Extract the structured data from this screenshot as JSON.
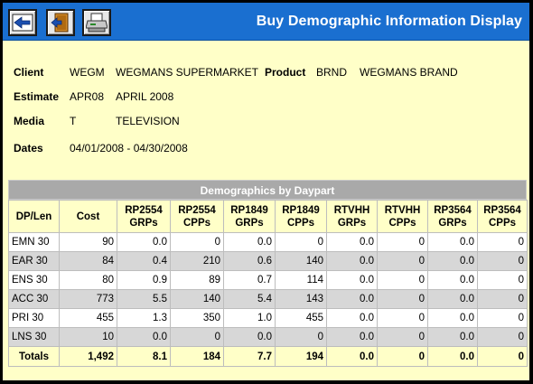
{
  "header": {
    "title": "Buy Demographic Information Display",
    "accent": "#1a6fd0"
  },
  "toolbar": {
    "back_icon": "back-arrow-icon",
    "exit_icon": "exit-door-icon",
    "print_icon": "printer-icon"
  },
  "info": {
    "client_label": "Client",
    "client_code": "WEGM",
    "client_name": "WEGMANS SUPERMARKET",
    "product_label": "Product",
    "product_code": "BRND",
    "product_name": "WEGMANS BRAND",
    "estimate_label": "Estimate",
    "estimate_code": "APR08",
    "estimate_name": "APRIL 2008",
    "media_label": "Media",
    "media_code": "T",
    "media_name": "TELEVISION",
    "dates_label": "Dates",
    "dates_value": "04/01/2008 - 04/30/2008"
  },
  "demographics": {
    "title": "Demographics by Daypart",
    "columns": [
      [
        "DP/Len"
      ],
      [
        "Cost"
      ],
      [
        "RP2554",
        "GRPs"
      ],
      [
        "RP2554",
        "CPPs"
      ],
      [
        "RP1849",
        "GRPs"
      ],
      [
        "RP1849",
        "CPPs"
      ],
      [
        "RTVHH",
        "GRPs"
      ],
      [
        "RTVHH",
        "CPPs"
      ],
      [
        "RP3564",
        "GRPs"
      ],
      [
        "RP3564",
        "CPPs"
      ]
    ],
    "rows": [
      [
        "EMN 30",
        "90",
        "0.0",
        "0",
        "0.0",
        "0",
        "0.0",
        "0",
        "0.0",
        "0"
      ],
      [
        "EAR 30",
        "84",
        "0.4",
        "210",
        "0.6",
        "140",
        "0.0",
        "0",
        "0.0",
        "0"
      ],
      [
        "ENS 30",
        "80",
        "0.9",
        "89",
        "0.7",
        "114",
        "0.0",
        "0",
        "0.0",
        "0"
      ],
      [
        "ACC 30",
        "773",
        "5.5",
        "140",
        "5.4",
        "143",
        "0.0",
        "0",
        "0.0",
        "0"
      ],
      [
        "PRI 30",
        "455",
        "1.3",
        "350",
        "1.0",
        "455",
        "0.0",
        "0",
        "0.0",
        "0"
      ],
      [
        "LNS 30",
        "10",
        "0.0",
        "0",
        "0.0",
        "0",
        "0.0",
        "0",
        "0.0",
        "0"
      ]
    ],
    "totals": [
      "Totals",
      "1,492",
      "8.1",
      "184",
      "7.7",
      "194",
      "0.0",
      "0",
      "0.0",
      "0"
    ]
  }
}
